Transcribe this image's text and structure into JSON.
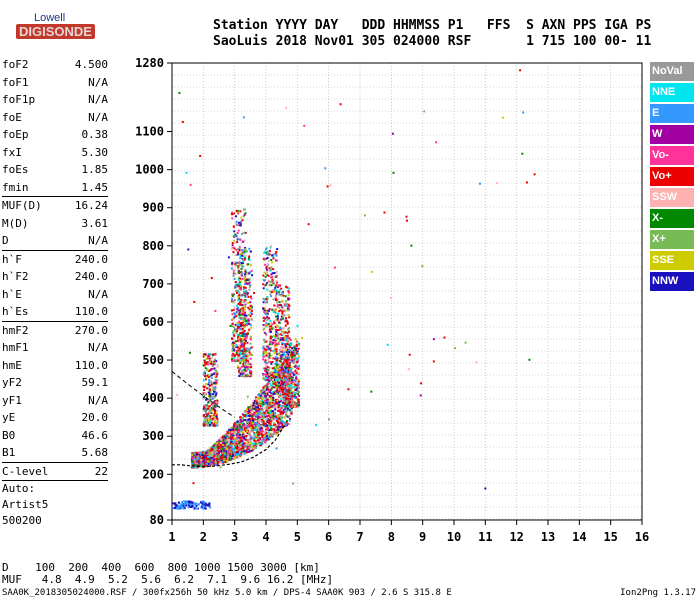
{
  "logo": {
    "line1": "Lowell",
    "line2": "DIGISONDE"
  },
  "header": {
    "line1": "Station YYYY DAY   DDD HHMMSS P1   FFS  S AXN PPS IGA PS",
    "line2": "SaoLuis 2018 Nov01 305 024000 RSF       1 715 100 00- 11"
  },
  "params": {
    "group1": [
      {
        "k": "foF2",
        "v": "4.500"
      },
      {
        "k": "foF1",
        "v": "N/A"
      },
      {
        "k": "foF1p",
        "v": "N/A"
      },
      {
        "k": "foE",
        "v": "N/A"
      },
      {
        "k": "foEp",
        "v": "0.38"
      },
      {
        "k": "fxI",
        "v": "5.30"
      },
      {
        "k": "foEs",
        "v": "1.85"
      },
      {
        "k": "fmin",
        "v": "1.45"
      }
    ],
    "group2": [
      {
        "k": "MUF(D)",
        "v": "16.24"
      },
      {
        "k": "M(D)",
        "v": "3.61"
      },
      {
        "k": "D",
        "v": "N/A"
      }
    ],
    "group3": [
      {
        "k": "h`F",
        "v": "240.0"
      },
      {
        "k": "h`F2",
        "v": "240.0"
      },
      {
        "k": "h`E",
        "v": "N/A"
      },
      {
        "k": "h`Es",
        "v": "110.0"
      }
    ],
    "group4": [
      {
        "k": "hmF2",
        "v": "270.0"
      },
      {
        "k": "hmF1",
        "v": "N/A"
      },
      {
        "k": "hmE",
        "v": "110.0"
      },
      {
        "k": "yF2",
        "v": "59.1"
      },
      {
        "k": "yF1",
        "v": "N/A"
      },
      {
        "k": "yE",
        "v": "20.0"
      },
      {
        "k": "B0",
        "v": "46.6"
      },
      {
        "k": "B1",
        "v": "5.68"
      }
    ],
    "group5": [
      {
        "k": "C-level",
        "v": "22"
      }
    ],
    "auto": [
      "Auto:",
      "Artist5",
      "500200"
    ]
  },
  "legend": [
    {
      "label": "NoVal",
      "color": "#999999"
    },
    {
      "label": "NNE",
      "color": "#00e5ee"
    },
    {
      "label": "E",
      "color": "#3399ff"
    },
    {
      "label": "W",
      "color": "#a000a0"
    },
    {
      "label": "Vo-",
      "color": "#ff3399"
    },
    {
      "label": "Vo+",
      "color": "#ee0000"
    },
    {
      "label": "SSW",
      "color": "#ffb0b0"
    },
    {
      "label": "X-",
      "color": "#008800"
    },
    {
      "label": "X+",
      "color": "#77bb55"
    },
    {
      "label": "SSE",
      "color": "#cccc00"
    },
    {
      "label": "NNW",
      "color": "#1a10c0"
    }
  ],
  "muf_table": {
    "line1": "D    100  200  400  600  800 1000 1500 3000 [km]",
    "line2": "MUF   4.8  4.9  5.2  5.6  6.2  7.1  9.6 16.2 [MHz]"
  },
  "footer": "SAA0K_2018305024000.RSF / 300fx256h 50 kHz 5.0 km / DPS-4 SAA0K 903 / 2.6 S 315.8 E",
  "version": "Ion2Png 1.3.17",
  "chart_data": {
    "type": "scatter",
    "xlim": [
      1,
      16
    ],
    "ylim": [
      80,
      1280
    ],
    "xticks": [
      1,
      2,
      3,
      4,
      5,
      6,
      7,
      8,
      9,
      10,
      11,
      12,
      13,
      14,
      15,
      16
    ],
    "yticks": [
      80,
      200,
      300,
      400,
      500,
      600,
      700,
      800,
      900,
      1000,
      1100,
      1280
    ],
    "grid": true,
    "trace": {
      "name": "",
      "x": [
        1.0,
        1.3,
        1.6,
        2.0,
        2.4,
        2.8,
        3.2,
        3.6,
        4.0,
        4.3,
        4.6
      ],
      "y": [
        225,
        225,
        222,
        220,
        222,
        226,
        232,
        245,
        265,
        290,
        330
      ]
    },
    "legend_placement": "right"
  }
}
